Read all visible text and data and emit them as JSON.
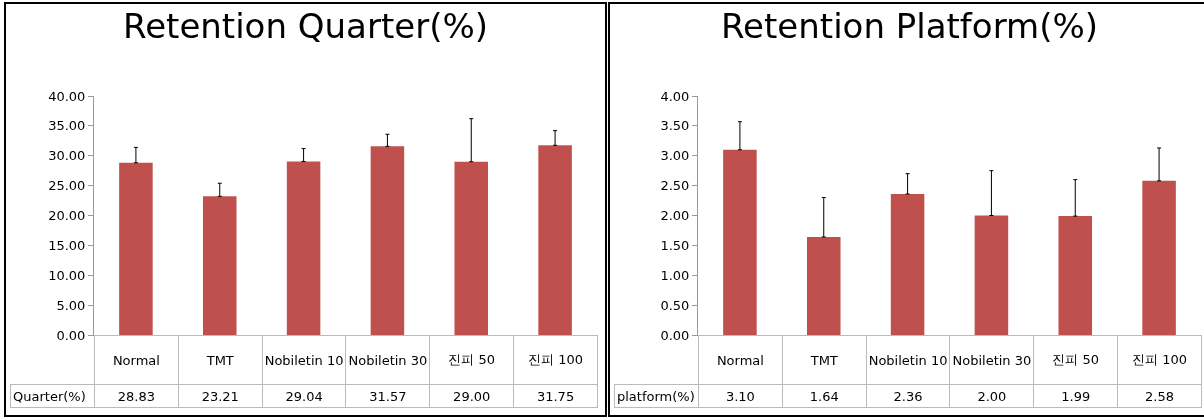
{
  "chart_data": [
    {
      "type": "bar",
      "title": "Retention Quarter(%)",
      "categories": [
        "Normal",
        "TMT",
        "Nobiletin 10",
        "Nobiletin 30",
        "진피 50",
        "진피 100"
      ],
      "series": [
        {
          "name": "Quarter(%)",
          "color": "#c0504d",
          "values": [
            28.83,
            23.21,
            29.04,
            31.57,
            29.0,
            31.75
          ],
          "value_labels": [
            "28.83",
            "23.21",
            "29.04",
            "31.57",
            "29.00",
            "31.75"
          ],
          "errors": [
            [
              28.83,
              31.4
            ],
            [
              23.21,
              25.4
            ],
            [
              29.04,
              31.2
            ],
            [
              31.57,
              33.6
            ],
            [
              29.0,
              36.2
            ],
            [
              31.75,
              34.2
            ]
          ]
        }
      ],
      "ylim": [
        0,
        40
      ],
      "yticks": [
        {
          "value": 0,
          "label": "0.00"
        },
        {
          "value": 5,
          "label": "5.00"
        },
        {
          "value": 10,
          "label": "10.00"
        },
        {
          "value": 15,
          "label": "15.00"
        },
        {
          "value": 20,
          "label": "20.00"
        },
        {
          "value": 25,
          "label": "25.00"
        },
        {
          "value": 30,
          "label": "30.00"
        },
        {
          "value": 35,
          "label": "35.00"
        },
        {
          "value": 40,
          "label": "40.00"
        }
      ],
      "grid": false,
      "legend": false
    },
    {
      "type": "bar",
      "title": "Retention Platform(%)",
      "categories": [
        "Normal",
        "TMT",
        "Nobiletin 10",
        "Nobiletin 30",
        "진피 50",
        "진피 100"
      ],
      "series": [
        {
          "name": "platform(%)",
          "color": "#c0504d",
          "values": [
            3.1,
            1.64,
            2.36,
            2.0,
            1.99,
            2.58
          ],
          "value_labels": [
            "3.10",
            "1.64",
            "2.36",
            "2.00",
            "1.99",
            "2.58"
          ],
          "errors": [
            [
              3.1,
              3.57
            ],
            [
              1.64,
              2.3
            ],
            [
              2.36,
              2.7
            ],
            [
              2.0,
              2.75
            ],
            [
              1.99,
              2.6
            ],
            [
              2.58,
              3.13
            ]
          ]
        }
      ],
      "ylim": [
        0,
        4
      ],
      "yticks": [
        {
          "value": 0,
          "label": "0.00"
        },
        {
          "value": 0.5,
          "label": "0.50"
        },
        {
          "value": 1,
          "label": "1.00"
        },
        {
          "value": 1.5,
          "label": "1.50"
        },
        {
          "value": 2,
          "label": "2.00"
        },
        {
          "value": 2.5,
          "label": "2.50"
        },
        {
          "value": 3,
          "label": "3.00"
        },
        {
          "value": 3.5,
          "label": "3.50"
        },
        {
          "value": 4,
          "label": "4.00"
        }
      ],
      "grid": false,
      "legend": false
    }
  ]
}
